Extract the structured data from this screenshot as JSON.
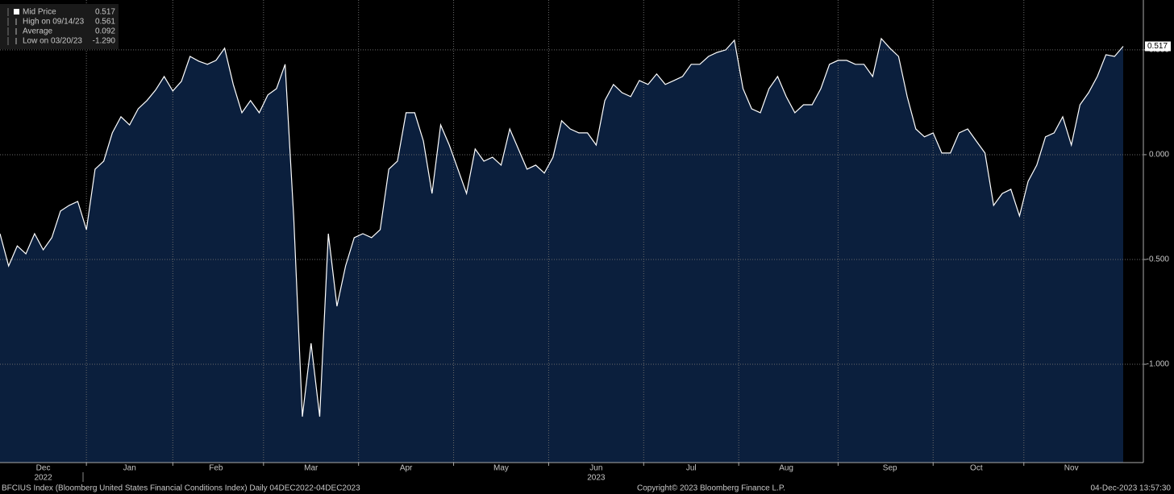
{
  "chart_data": {
    "type": "area",
    "footer_left": "BFCIUS Index (Bloomberg United States Financial Conditions Index)  Daily 04DEC2022-04DEC2023",
    "footer_center": "Copyright© 2023 Bloomberg Finance L.P.",
    "footer_right": "04-Dec-2023 13:57:30",
    "stats": [
      {
        "label": "Mid Price",
        "value": "0.517"
      },
      {
        "label": "High on 09/14/23",
        "value": "0.561"
      },
      {
        "label": "Average",
        "value": "0.092"
      },
      {
        "label": "Low on 03/20/23",
        "value": "-1.290"
      }
    ],
    "categories": [
      null,
      null,
      null,
      null,
      null,
      "Dec",
      null,
      null,
      null,
      null,
      null,
      null,
      null,
      null,
      null,
      "Jan",
      null,
      null,
      null,
      null,
      null,
      null,
      null,
      null,
      null,
      "Feb",
      null,
      null,
      null,
      null,
      null,
      null,
      null,
      null,
      null,
      null,
      "Mar",
      null,
      null,
      null,
      null,
      null,
      null,
      null,
      null,
      null,
      null,
      "Apr",
      null,
      null,
      null,
      null,
      null,
      null,
      null,
      null,
      null,
      null,
      "May",
      null,
      null,
      null,
      null,
      null,
      null,
      null,
      null,
      null,
      null,
      "Jun",
      null,
      null,
      null,
      null,
      null,
      null,
      null,
      null,
      null,
      null,
      "Jul",
      null,
      null,
      null,
      null,
      null,
      null,
      null,
      null,
      null,
      null,
      "Aug",
      null,
      null,
      null,
      null,
      null,
      null,
      null,
      null,
      null,
      null,
      null,
      "Sep",
      null,
      null,
      null,
      null,
      null,
      null,
      null,
      null,
      null,
      "Oct",
      null,
      null,
      null,
      null,
      null,
      null,
      null,
      null,
      null,
      null,
      "Nov",
      null,
      null,
      null,
      null,
      null,
      null
    ],
    "category_years": [
      null,
      null,
      null,
      null,
      null,
      "2022",
      null,
      null,
      null,
      null,
      null,
      null,
      null,
      null,
      null,
      null,
      null,
      null,
      null,
      null,
      null,
      null,
      null,
      null,
      null,
      null,
      null,
      null,
      null,
      null,
      null,
      null,
      null,
      null,
      null,
      null,
      null,
      null,
      null,
      null,
      null,
      null,
      null,
      null,
      null,
      null,
      null,
      null,
      null,
      null,
      null,
      null,
      null,
      null,
      null,
      null,
      null,
      null,
      null,
      null,
      null,
      null,
      null,
      null,
      null,
      null,
      null,
      null,
      null,
      "2023",
      null,
      null,
      null,
      null,
      null,
      null,
      null,
      null,
      null,
      null,
      null,
      null,
      null,
      null,
      null,
      null,
      null,
      null,
      null,
      null,
      null,
      null,
      null,
      null,
      null,
      null,
      null,
      null,
      null,
      null,
      null,
      null,
      null,
      null,
      null,
      null,
      null,
      null,
      null,
      null,
      null,
      null,
      null,
      null,
      null,
      null,
      null,
      null,
      null,
      null,
      null,
      null,
      null,
      null,
      null,
      null,
      null,
      null,
      null,
      null,
      null
    ],
    "series": [
      {
        "name": "Mid Price",
        "color": "#ffffff",
        "fill": "#0b1f3d",
        "values": [
          -0.377,
          -0.531,
          -0.435,
          -0.473,
          -0.377,
          -0.454,
          -0.396,
          -0.269,
          -0.242,
          -0.223,
          -0.358,
          -0.069,
          -0.031,
          0.104,
          0.181,
          0.142,
          0.219,
          0.258,
          0.308,
          0.373,
          0.304,
          0.35,
          0.469,
          0.446,
          0.431,
          0.45,
          0.508,
          0.335,
          0.2,
          0.258,
          0.2,
          0.285,
          0.315,
          0.431,
          -0.3,
          -1.25,
          -0.9,
          -1.25,
          -0.377,
          -0.723,
          -0.531,
          -0.396,
          -0.377,
          -0.396,
          -0.358,
          -0.069,
          -0.031,
          0.2,
          0.2,
          0.065,
          -0.185,
          0.142,
          0.046,
          -0.069,
          -0.185,
          0.027,
          -0.031,
          -0.012,
          -0.05,
          0.123,
          0.027,
          -0.069,
          -0.05,
          -0.088,
          -0.012,
          0.162,
          0.123,
          0.104,
          0.104,
          0.046,
          0.258,
          0.335,
          0.296,
          0.277,
          0.354,
          0.335,
          0.385,
          0.335,
          0.354,
          0.373,
          0.431,
          0.431,
          0.469,
          0.488,
          0.5,
          0.546,
          0.315,
          0.219,
          0.2,
          0.315,
          0.373,
          0.277,
          0.2,
          0.238,
          0.238,
          0.315,
          0.431,
          0.45,
          0.45,
          0.431,
          0.431,
          0.373,
          0.554,
          0.508,
          0.469,
          0.277,
          0.123,
          0.085,
          0.104,
          0.008,
          0.008,
          0.104,
          0.123,
          0.065,
          0.008,
          -0.242,
          -0.185,
          -0.165,
          -0.292,
          -0.127,
          -0.05,
          0.085,
          0.104,
          0.181,
          0.046,
          0.238,
          0.296,
          0.373,
          0.477,
          0.469,
          0.517
        ]
      }
    ],
    "ylim": [
      -1.469,
      0.738
    ],
    "yticks": [
      {
        "value": 0.5,
        "label": "0.500"
      },
      {
        "value": 0,
        "label": "0.000"
      },
      {
        "value": -0.5,
        "label": "-0.500"
      },
      {
        "value": -1,
        "label": "-1.000"
      }
    ],
    "grid": true
  }
}
